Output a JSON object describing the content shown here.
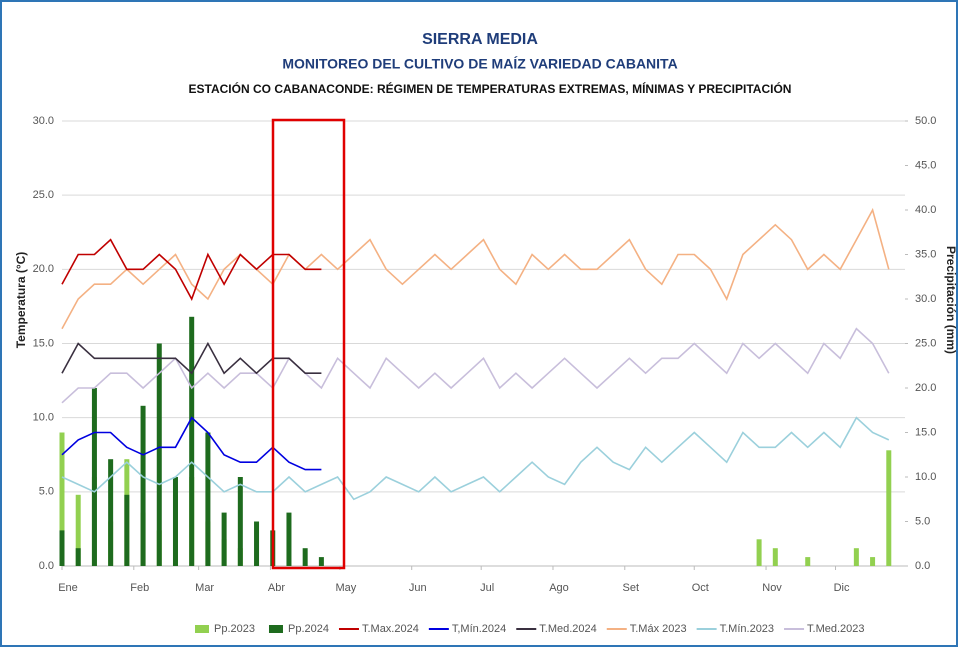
{
  "chart_data": {
    "type": "line",
    "title": "SIERRA MEDIA",
    "subtitle": "MONITOREO DEL CULTIVO DE MAÍZ VARIEDAD CABANITA",
    "caption": "ESTACIÓN CO CABANACONDE: RÉGIMEN DE TEMPERATURAS  EXTREMAS, MÍNIMAS Y PRECIPITACIÓN",
    "ylabel": "Temperatura (°C)",
    "y2label": "Precipitación (mm)",
    "grid": true,
    "legend": "bottom",
    "xlim": [
      1,
      365
    ],
    "xticks": [
      {
        "value": 1,
        "label": "Ene"
      },
      {
        "value": 32,
        "label": "Feb"
      },
      {
        "value": 60,
        "label": "Mar"
      },
      {
        "value": 91,
        "label": "Abr"
      },
      {
        "value": 121,
        "label": "May"
      },
      {
        "value": 152,
        "label": "Jun"
      },
      {
        "value": 182,
        "label": "Jul"
      },
      {
        "value": 213,
        "label": "Ago"
      },
      {
        "value": 244,
        "label": "Set"
      },
      {
        "value": 274,
        "label": "Oct"
      },
      {
        "value": 305,
        "label": "Nov"
      },
      {
        "value": 335,
        "label": "Dic"
      }
    ],
    "ylim": [
      0,
      30
    ],
    "yticks": [
      {
        "value": 0,
        "label": "0.0"
      },
      {
        "value": 5,
        "label": "5.0"
      },
      {
        "value": 10,
        "label": "10.0"
      },
      {
        "value": 15,
        "label": "15.0"
      },
      {
        "value": 20,
        "label": "20.0"
      },
      {
        "value": 25,
        "label": "25.0"
      },
      {
        "value": 30,
        "label": "30.0"
      }
    ],
    "y2lim": [
      0,
      50
    ],
    "y2ticks": [
      {
        "value": 0,
        "label": "0.0"
      },
      {
        "value": 5,
        "label": "5.0"
      },
      {
        "value": 10,
        "label": "10.0"
      },
      {
        "value": 15,
        "label": "15.0"
      },
      {
        "value": 20,
        "label": "20.0"
      },
      {
        "value": 25,
        "label": "25.0"
      },
      {
        "value": 30,
        "label": "30.0"
      },
      {
        "value": 35,
        "label": "35.0"
      },
      {
        "value": 40,
        "label": "40.0"
      },
      {
        "value": 45,
        "label": "45.0"
      },
      {
        "value": 50,
        "label": "50.0"
      }
    ],
    "x": [
      1,
      8,
      15,
      22,
      29,
      36,
      43,
      50,
      57,
      64,
      71,
      78,
      85,
      92,
      99,
      106,
      113,
      120,
      127,
      134,
      141,
      148,
      155,
      162,
      169,
      176,
      183,
      190,
      197,
      204,
      211,
      218,
      225,
      232,
      239,
      246,
      253,
      260,
      267,
      274,
      281,
      288,
      295,
      302,
      309,
      316,
      323,
      330,
      337,
      344,
      351,
      358
    ],
    "series": [
      {
        "name": "Pp.2023",
        "type": "bar",
        "axis": "y2",
        "color": "#92d050",
        "values": [
          15,
          8,
          10,
          5,
          12,
          6,
          4,
          8,
          10,
          5,
          3,
          2,
          0,
          0,
          0,
          0,
          0,
          0,
          0,
          0,
          0,
          0,
          0,
          0,
          0,
          0,
          0,
          0,
          0,
          0,
          0,
          0,
          0,
          0,
          0,
          0,
          0,
          0,
          0,
          0,
          0,
          0,
          0,
          3,
          2,
          0,
          1,
          0,
          0,
          2,
          1,
          13
        ]
      },
      {
        "name": "Pp.2024",
        "type": "bar",
        "axis": "y2",
        "color": "#1e6b1e",
        "values": [
          4,
          2,
          20,
          12,
          8,
          18,
          25,
          10,
          28,
          15,
          6,
          10,
          5,
          4,
          6,
          2,
          1,
          null,
          null,
          null,
          null,
          null,
          null,
          null,
          null,
          null,
          null,
          null,
          null,
          null,
          null,
          null,
          null,
          null,
          null,
          null,
          null,
          null,
          null,
          null,
          null,
          null,
          null,
          null,
          null,
          null,
          null,
          null,
          null,
          null,
          null,
          null
        ]
      },
      {
        "name": "T.Max.2024",
        "type": "line",
        "color": "#c00000",
        "values": [
          19,
          21,
          21,
          22,
          20,
          20,
          21,
          20,
          18,
          21,
          19,
          21,
          20,
          21,
          21,
          20,
          20,
          null,
          null,
          null,
          null,
          null,
          null,
          null,
          null,
          null,
          null,
          null,
          null,
          null,
          null,
          null,
          null,
          null,
          null,
          null,
          null,
          null,
          null,
          null,
          null,
          null,
          null,
          null,
          null,
          null,
          null,
          null,
          null,
          null,
          null,
          null
        ]
      },
      {
        "name": "T,Mín.2024",
        "type": "line",
        "color": "#0000e0",
        "values": [
          7.5,
          8.5,
          9,
          9,
          8,
          7.5,
          8,
          8,
          10,
          9,
          7.5,
          7,
          7,
          8,
          7,
          6.5,
          6.5,
          null,
          null,
          null,
          null,
          null,
          null,
          null,
          null,
          null,
          null,
          null,
          null,
          null,
          null,
          null,
          null,
          null,
          null,
          null,
          null,
          null,
          null,
          null,
          null,
          null,
          null,
          null,
          null,
          null,
          null,
          null,
          null,
          null,
          null,
          null
        ]
      },
      {
        "name": "T.Med.2024",
        "type": "line",
        "color": "#3a3040",
        "values": [
          13,
          15,
          14,
          14,
          14,
          14,
          14,
          14,
          13,
          15,
          13,
          14,
          13,
          14,
          14,
          13,
          13,
          null,
          null,
          null,
          null,
          null,
          null,
          null,
          null,
          null,
          null,
          null,
          null,
          null,
          null,
          null,
          null,
          null,
          null,
          null,
          null,
          null,
          null,
          null,
          null,
          null,
          null,
          null,
          null,
          null,
          null,
          null,
          null,
          null,
          null,
          null
        ]
      },
      {
        "name": "T.Máx 2023",
        "type": "line",
        "color": "#f4b183",
        "values": [
          16,
          18,
          19,
          19,
          20,
          19,
          20,
          21,
          19,
          18,
          20,
          21,
          20,
          19,
          21,
          20,
          21,
          20,
          21,
          22,
          20,
          19,
          20,
          21,
          20,
          21,
          22,
          20,
          19,
          21,
          20,
          21,
          20,
          20,
          21,
          22,
          20,
          19,
          21,
          21,
          20,
          18,
          21,
          22,
          23,
          22,
          20,
          21,
          20,
          22,
          24,
          20
        ]
      },
      {
        "name": "T.Mín.2023",
        "type": "line",
        "color": "#9bd0dc",
        "values": [
          6,
          5.5,
          5,
          6,
          7,
          6,
          5.5,
          6,
          7,
          6,
          5,
          5.5,
          5,
          5,
          6,
          5,
          5.5,
          6,
          4.5,
          5,
          6,
          5.5,
          5,
          6,
          5,
          5.5,
          6,
          5,
          6,
          7,
          6,
          5.5,
          7,
          8,
          7,
          6.5,
          8,
          7,
          8,
          9,
          8,
          7,
          9,
          8,
          8,
          9,
          8,
          9,
          8,
          10,
          9,
          8.5
        ]
      },
      {
        "name": "T.Med.2023",
        "type": "line",
        "color": "#c8bedb",
        "values": [
          11,
          12,
          12,
          13,
          13,
          12,
          13,
          14,
          12,
          13,
          12,
          13,
          13,
          12,
          14,
          13,
          12,
          14,
          13,
          12,
          14,
          13,
          12,
          13,
          12,
          13,
          14,
          12,
          13,
          12,
          13,
          14,
          13,
          12,
          13,
          14,
          13,
          14,
          14,
          15,
          14,
          13,
          15,
          14,
          15,
          14,
          13,
          15,
          14,
          16,
          15,
          13
        ]
      }
    ]
  }
}
